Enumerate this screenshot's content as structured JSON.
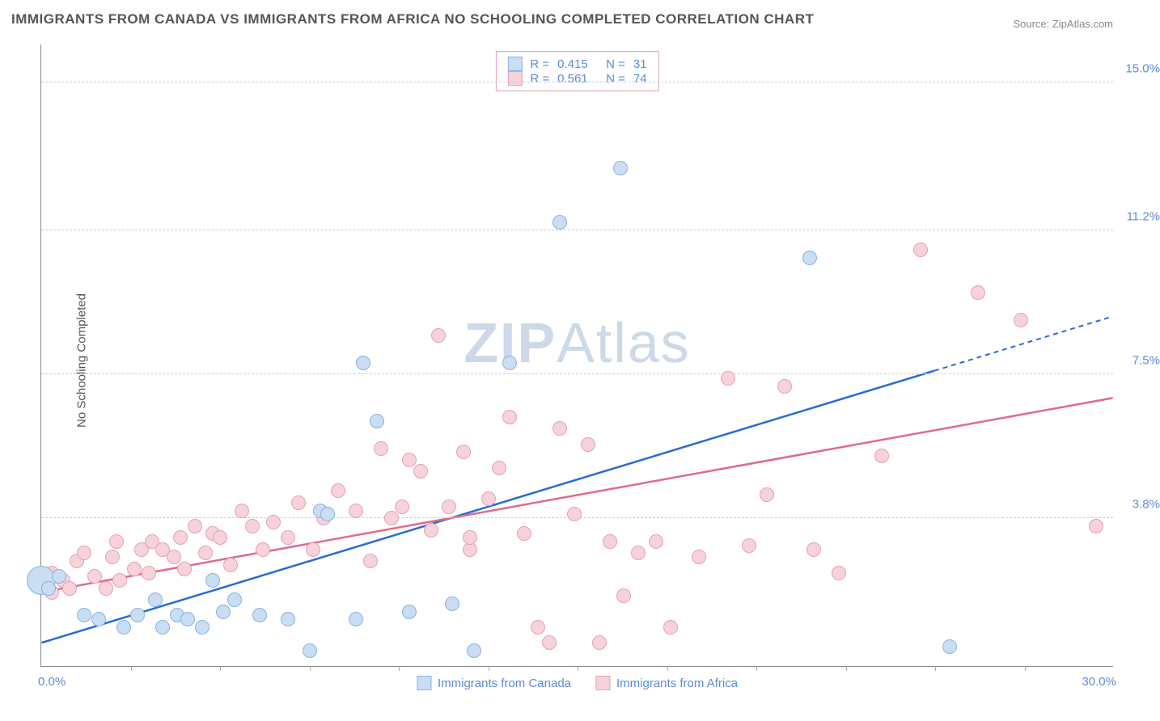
{
  "title": "IMMIGRANTS FROM CANADA VS IMMIGRANTS FROM AFRICA NO SCHOOLING COMPLETED CORRELATION CHART",
  "source": "Source: ZipAtlas.com",
  "yaxis_label": "No Schooling Completed",
  "watermark_a": "ZIP",
  "watermark_b": "Atlas",
  "chart": {
    "type": "scatter",
    "xlim": [
      0,
      30
    ],
    "ylim": [
      0,
      16
    ],
    "xtick_min": "0.0%",
    "xtick_max": "30.0%",
    "yticks": [
      {
        "v": 3.8,
        "label": "3.8%"
      },
      {
        "v": 7.5,
        "label": "7.5%"
      },
      {
        "v": 11.2,
        "label": "11.2%"
      },
      {
        "v": 15.0,
        "label": "15.0%"
      }
    ],
    "xgrid_ticks": [
      2.5,
      5,
      7.5,
      10,
      12.5,
      15,
      17.5,
      20,
      22.5,
      25,
      27.5
    ],
    "background_color": "#ffffff",
    "grid_color": "#cccccc",
    "axis_color": "#888888",
    "tick_label_color": "#5b8bd4",
    "series": [
      {
        "name": "Immigrants from Canada",
        "fill": "#c9ddf3",
        "stroke": "#8ab2e0",
        "line_color": "#2a6bd4",
        "marker_radius": 9,
        "r_value": "0.415",
        "n_value": "31",
        "trend": {
          "x1": 0,
          "y1": 0.6,
          "x2": 25,
          "y2": 7.6,
          "dash_from_x": 25,
          "dash_to_x": 30,
          "dash_to_y": 9.0
        },
        "points": [
          [
            0,
            2.2,
            18
          ],
          [
            0.2,
            2.0,
            9
          ],
          [
            0.5,
            2.3,
            9
          ],
          [
            1.2,
            1.3,
            9
          ],
          [
            1.6,
            1.2,
            9
          ],
          [
            2.3,
            1.0,
            9
          ],
          [
            2.7,
            1.3,
            9
          ],
          [
            3.2,
            1.7,
            9
          ],
          [
            3.4,
            1.0,
            9
          ],
          [
            3.8,
            1.3,
            9
          ],
          [
            4.1,
            1.2,
            9
          ],
          [
            4.5,
            1.0,
            9
          ],
          [
            4.8,
            2.2,
            9
          ],
          [
            5.1,
            1.4,
            9
          ],
          [
            5.4,
            1.7,
            9
          ],
          [
            6.1,
            1.3,
            9
          ],
          [
            6.9,
            1.2,
            9
          ],
          [
            7.5,
            0.4,
            9
          ],
          [
            7.8,
            4.0,
            9
          ],
          [
            8.0,
            3.9,
            9
          ],
          [
            8.8,
            1.2,
            9
          ],
          [
            9.0,
            7.8,
            9
          ],
          [
            9.4,
            6.3,
            9
          ],
          [
            10.3,
            1.4,
            9
          ],
          [
            11.5,
            1.6,
            9
          ],
          [
            12.1,
            0.4,
            9
          ],
          [
            13.1,
            7.8,
            9
          ],
          [
            14.5,
            11.4,
            9
          ],
          [
            16.2,
            12.8,
            9
          ],
          [
            21.5,
            10.5,
            9
          ],
          [
            25.4,
            0.5,
            9
          ]
        ]
      },
      {
        "name": "Immigrants from Africa",
        "fill": "#f6d3db",
        "stroke": "#e5a0b0",
        "line_color": "#e06a8a",
        "marker_radius": 9,
        "r_value": "0.561",
        "n_value": "74",
        "trend": {
          "x1": 0,
          "y1": 1.9,
          "x2": 30,
          "y2": 6.9
        },
        "points": [
          [
            0.1,
            2.1,
            9
          ],
          [
            0.3,
            1.9,
            9
          ],
          [
            0.3,
            2.4,
            9
          ],
          [
            0.6,
            2.2,
            9
          ],
          [
            0.8,
            2.0,
            9
          ],
          [
            1.0,
            2.7,
            9
          ],
          [
            1.2,
            2.9,
            9
          ],
          [
            1.5,
            2.3,
            9
          ],
          [
            1.8,
            2.0,
            9
          ],
          [
            2.0,
            2.8,
            9
          ],
          [
            2.1,
            3.2,
            9
          ],
          [
            2.2,
            2.2,
            9
          ],
          [
            2.6,
            2.5,
            9
          ],
          [
            2.8,
            3.0,
            9
          ],
          [
            3.0,
            2.4,
            9
          ],
          [
            3.1,
            3.2,
            9
          ],
          [
            3.4,
            3.0,
            9
          ],
          [
            3.7,
            2.8,
            9
          ],
          [
            3.9,
            3.3,
            9
          ],
          [
            4.0,
            2.5,
            9
          ],
          [
            4.3,
            3.6,
            9
          ],
          [
            4.6,
            2.9,
            9
          ],
          [
            4.8,
            3.4,
            9
          ],
          [
            5.0,
            3.3,
            9
          ],
          [
            5.3,
            2.6,
            9
          ],
          [
            5.6,
            4.0,
            9
          ],
          [
            5.9,
            3.6,
            9
          ],
          [
            6.2,
            3.0,
            9
          ],
          [
            6.5,
            3.7,
            9
          ],
          [
            6.9,
            3.3,
            9
          ],
          [
            7.2,
            4.2,
            9
          ],
          [
            7.6,
            3.0,
            9
          ],
          [
            7.9,
            3.8,
            9
          ],
          [
            8.3,
            4.5,
            9
          ],
          [
            8.8,
            4.0,
            9
          ],
          [
            9.2,
            2.7,
            9
          ],
          [
            9.5,
            5.6,
            9
          ],
          [
            9.8,
            3.8,
            9
          ],
          [
            10.1,
            4.1,
            9
          ],
          [
            10.3,
            5.3,
            9
          ],
          [
            10.6,
            5.0,
            9
          ],
          [
            10.9,
            3.5,
            9
          ],
          [
            11.1,
            8.5,
            9
          ],
          [
            11.4,
            4.1,
            9
          ],
          [
            11.8,
            5.5,
            9
          ],
          [
            12.0,
            3.0,
            9
          ],
          [
            12.5,
            4.3,
            9
          ],
          [
            12.8,
            5.1,
            9
          ],
          [
            13.1,
            6.4,
            9
          ],
          [
            13.5,
            3.4,
            9
          ],
          [
            13.9,
            1.0,
            9
          ],
          [
            14.2,
            0.6,
            9
          ],
          [
            14.5,
            6.1,
            9
          ],
          [
            14.9,
            3.9,
            9
          ],
          [
            15.3,
            5.7,
            9
          ],
          [
            15.6,
            0.6,
            9
          ],
          [
            15.9,
            3.2,
            9
          ],
          [
            16.3,
            1.8,
            9
          ],
          [
            16.7,
            2.9,
            9
          ],
          [
            17.2,
            3.2,
            9
          ],
          [
            17.6,
            1.0,
            9
          ],
          [
            18.4,
            2.8,
            9
          ],
          [
            19.2,
            7.4,
            9
          ],
          [
            19.8,
            3.1,
            9
          ],
          [
            20.3,
            4.4,
            9
          ],
          [
            20.8,
            7.2,
            9
          ],
          [
            21.6,
            3.0,
            9
          ],
          [
            22.3,
            2.4,
            9
          ],
          [
            23.5,
            5.4,
            9
          ],
          [
            24.6,
            10.7,
            9
          ],
          [
            26.2,
            9.6,
            9
          ],
          [
            27.4,
            8.9,
            9
          ],
          [
            29.5,
            3.6,
            9
          ],
          [
            12.0,
            3.3,
            9
          ]
        ]
      }
    ],
    "legend_top": {
      "border_color": "#e5a0b0",
      "r_label": "R =",
      "n_label": "N ="
    },
    "legend_bottom_labels": [
      "Immigrants from Canada",
      "Immigrants from Africa"
    ]
  }
}
